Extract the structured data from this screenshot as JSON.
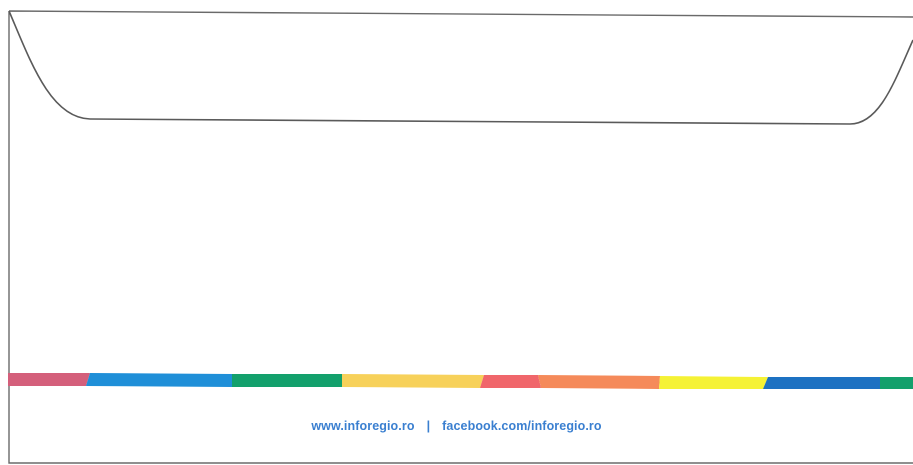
{
  "footer": {
    "website": "www.inforegio.ro",
    "separator": "|",
    "facebook": "facebook.com/inforegio.ro"
  },
  "stripe": {
    "colors": [
      "#d45f7b",
      "#1f8fd8",
      "#13a06c",
      "#f7d15a",
      "#f0666b",
      "#f58a5a",
      "#f5f235",
      "#1d71c2",
      "#13a06c"
    ]
  }
}
